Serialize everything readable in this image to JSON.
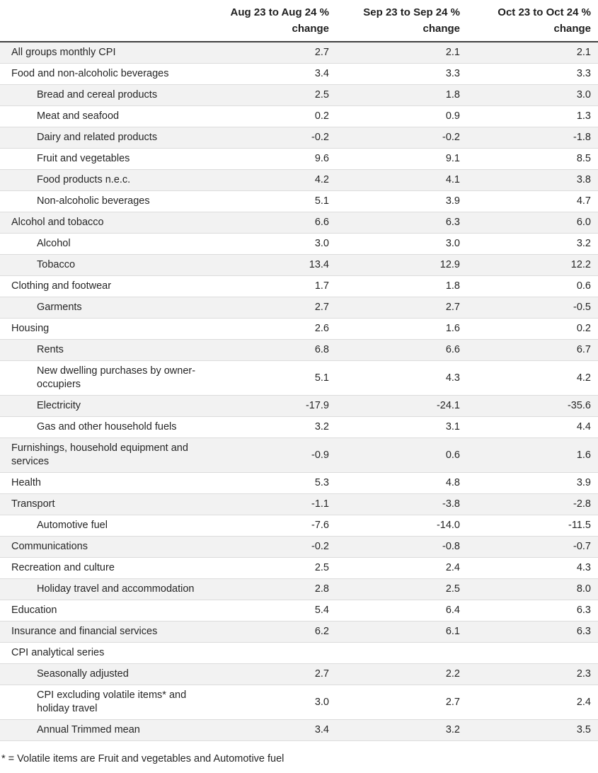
{
  "chart_data": {
    "type": "table",
    "columns": [
      "Aug 23 to Aug 24 % change",
      "Sep 23 to Sep 24 % change",
      "Oct 23 to Oct 24 % change"
    ],
    "rows": [
      {
        "label": "All groups monthly CPI",
        "indent": 0,
        "values": [
          "2.7",
          "2.1",
          "2.1"
        ]
      },
      {
        "label": "Food and non-alcoholic beverages",
        "indent": 0,
        "values": [
          "3.4",
          "3.3",
          "3.3"
        ]
      },
      {
        "label": "Bread and cereal products",
        "indent": 1,
        "values": [
          "2.5",
          "1.8",
          "3.0"
        ]
      },
      {
        "label": "Meat and seafood",
        "indent": 1,
        "values": [
          "0.2",
          "0.9",
          "1.3"
        ]
      },
      {
        "label": "Dairy and related products",
        "indent": 1,
        "values": [
          "-0.2",
          "-0.2",
          "-1.8"
        ]
      },
      {
        "label": "Fruit and vegetables",
        "indent": 1,
        "values": [
          "9.6",
          "9.1",
          "8.5"
        ]
      },
      {
        "label": "Food products n.e.c.",
        "indent": 1,
        "values": [
          "4.2",
          "4.1",
          "3.8"
        ]
      },
      {
        "label": "Non-alcoholic beverages",
        "indent": 1,
        "values": [
          "5.1",
          "3.9",
          "4.7"
        ]
      },
      {
        "label": "Alcohol and tobacco",
        "indent": 0,
        "values": [
          "6.6",
          "6.3",
          "6.0"
        ]
      },
      {
        "label": "Alcohol",
        "indent": 1,
        "values": [
          "3.0",
          "3.0",
          "3.2"
        ]
      },
      {
        "label": "Tobacco",
        "indent": 1,
        "values": [
          "13.4",
          "12.9",
          "12.2"
        ]
      },
      {
        "label": "Clothing and footwear",
        "indent": 0,
        "values": [
          "1.7",
          "1.8",
          "0.6"
        ]
      },
      {
        "label": "Garments",
        "indent": 1,
        "values": [
          "2.7",
          "2.7",
          "-0.5"
        ]
      },
      {
        "label": "Housing",
        "indent": 0,
        "values": [
          "2.6",
          "1.6",
          "0.2"
        ]
      },
      {
        "label": "Rents",
        "indent": 1,
        "values": [
          "6.8",
          "6.6",
          "6.7"
        ]
      },
      {
        "label": "New dwelling purchases by owner-occupiers",
        "indent": 1,
        "values": [
          "5.1",
          "4.3",
          "4.2"
        ]
      },
      {
        "label": "Electricity",
        "indent": 1,
        "values": [
          "-17.9",
          "-24.1",
          "-35.6"
        ]
      },
      {
        "label": "Gas and other household fuels",
        "indent": 1,
        "values": [
          "3.2",
          "3.1",
          "4.4"
        ]
      },
      {
        "label": "Furnishings, household equipment and services",
        "indent": 0,
        "values": [
          "-0.9",
          "0.6",
          "1.6"
        ]
      },
      {
        "label": "Health",
        "indent": 0,
        "values": [
          "5.3",
          "4.8",
          "3.9"
        ]
      },
      {
        "label": "Transport",
        "indent": 0,
        "values": [
          "-1.1",
          "-3.8",
          "-2.8"
        ]
      },
      {
        "label": "Automotive fuel",
        "indent": 1,
        "values": [
          "-7.6",
          "-14.0",
          "-11.5"
        ]
      },
      {
        "label": "Communications",
        "indent": 0,
        "values": [
          "-0.2",
          "-0.8",
          "-0.7"
        ]
      },
      {
        "label": "Recreation and culture",
        "indent": 0,
        "values": [
          "2.5",
          "2.4",
          "4.3"
        ]
      },
      {
        "label": "Holiday travel and accommodation",
        "indent": 1,
        "values": [
          "2.8",
          "2.5",
          "8.0"
        ]
      },
      {
        "label": "Education",
        "indent": 0,
        "values": [
          "5.4",
          "6.4",
          "6.3"
        ]
      },
      {
        "label": "Insurance and financial services",
        "indent": 0,
        "values": [
          "6.2",
          "6.1",
          "6.3"
        ]
      },
      {
        "label": "CPI analytical series",
        "indent": 0,
        "values": [
          "",
          "",
          ""
        ]
      },
      {
        "label": "Seasonally adjusted",
        "indent": 1,
        "values": [
          "2.7",
          "2.2",
          "2.3"
        ]
      },
      {
        "label": "CPI excluding volatile items* and holiday travel",
        "indent": 1,
        "values": [
          "3.0",
          "2.7",
          "2.4"
        ]
      },
      {
        "label": "Annual Trimmed mean",
        "indent": 1,
        "values": [
          "3.4",
          "3.2",
          "3.5"
        ]
      }
    ],
    "footnote": "* = Volatile items are Fruit and vegetables and Automotive fuel",
    "layout": {
      "zebra_striping": "odd rows shaded",
      "value_alignment": "right"
    }
  },
  "colors": {
    "row_shaded": "#f2f2f2",
    "row_border": "#dcdcdc",
    "header_border": "#404040",
    "text": "#262626"
  }
}
